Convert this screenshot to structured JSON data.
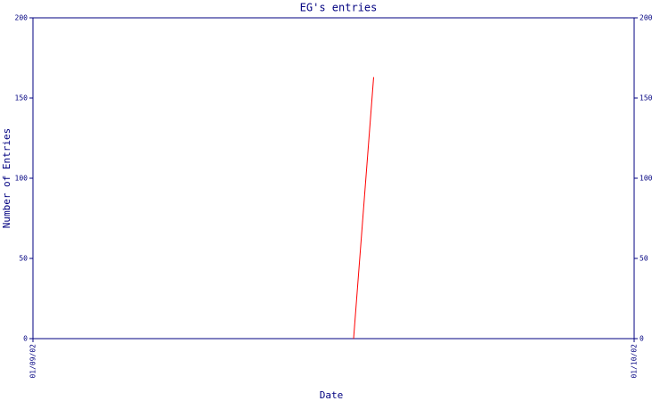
{
  "chart_data": {
    "type": "line",
    "title": "EG's entries",
    "xlabel": "Date",
    "ylabel": "Number of Entries",
    "x": [
      16,
      17
    ],
    "series": [
      {
        "name": "entries",
        "color": "#ff0000",
        "values": [
          0,
          163
        ]
      }
    ],
    "xlim": [
      0,
      30
    ],
    "xticks": [
      {
        "value": 0,
        "label": "01/09/02"
      },
      {
        "value": 30,
        "label": "01/10/02"
      }
    ],
    "ylim": [
      0,
      200
    ],
    "yticks": [
      0,
      50,
      100,
      150,
      200
    ],
    "axis_color": "#000080",
    "grid": false,
    "mirror_y_axis": true
  }
}
